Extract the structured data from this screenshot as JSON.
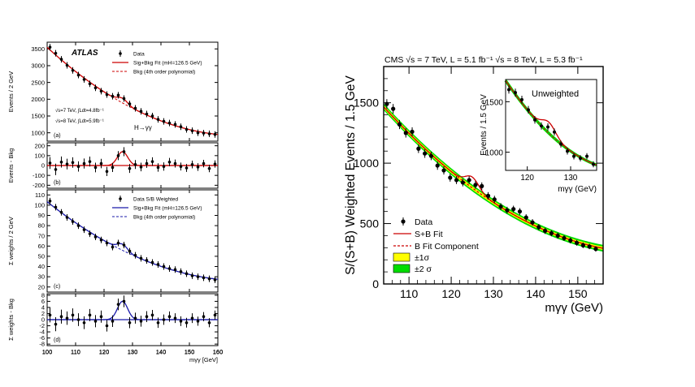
{
  "colors": {
    "data": "#000000",
    "sig_bkg_fit_red": "#cc0000",
    "bkg_dash_red": "#cc0000",
    "weighted_fit_blue": "#1a1aaa",
    "band_1sigma": "#ffff00",
    "band_2sigma": "#00dd00"
  },
  "chart_data": [
    {
      "id": "atlas-a",
      "type": "scatter",
      "ylabel": "Events / 2 GeV",
      "xlim": [
        100,
        160
      ],
      "ylim": [
        750,
        3700
      ],
      "yticks": [
        1000,
        1500,
        2000,
        2500,
        3000,
        3500
      ],
      "brand": "ATLAS",
      "panel_label": "(a)",
      "channel": "H→γγ",
      "lumi_text": [
        "√s=7 TeV, ∫Ldt=4.8fb⁻¹",
        "√s=8 TeV, ∫Ldt=5.9fb⁻¹"
      ],
      "legend": {
        "data": "Data",
        "fit": "Sig+Bkg Fit  (mH=126.5 GeV)",
        "bkg": "Bkg (4th order polynomial)"
      },
      "x": [
        101,
        103,
        105,
        107,
        109,
        111,
        113,
        115,
        117,
        119,
        121,
        123,
        125,
        127,
        129,
        131,
        133,
        135,
        137,
        139,
        141,
        143,
        145,
        147,
        149,
        151,
        153,
        155,
        157,
        159
      ],
      "y": [
        3550,
        3370,
        3190,
        3010,
        2860,
        2720,
        2590,
        2460,
        2340,
        2240,
        2140,
        2090,
        2120,
        2020,
        1860,
        1730,
        1640,
        1560,
        1500,
        1400,
        1340,
        1290,
        1250,
        1180,
        1100,
        1060,
        1000,
        990,
        970,
        950
      ],
      "signal": {
        "mass": 126.5,
        "width": 1.8,
        "amp": 140
      }
    },
    {
      "id": "atlas-b",
      "type": "scatter",
      "ylabel": "Events - Bkg",
      "xlim": [
        100,
        160
      ],
      "ylim": [
        -230,
        230
      ],
      "yticks": [
        -200,
        -100,
        0,
        100,
        200
      ],
      "panel_label": "(b)",
      "x": [
        101,
        103,
        105,
        107,
        109,
        111,
        113,
        115,
        117,
        119,
        121,
        123,
        125,
        127,
        129,
        131,
        133,
        135,
        137,
        139,
        141,
        143,
        145,
        147,
        149,
        151,
        153,
        155,
        157,
        159
      ],
      "y": [
        25,
        -40,
        35,
        15,
        30,
        -10,
        20,
        40,
        -20,
        20,
        -60,
        -20,
        100,
        140,
        -30,
        10,
        -15,
        20,
        40,
        -20,
        -10,
        35,
        20,
        -10,
        -25,
        10,
        -15,
        20,
        -30,
        15
      ],
      "err": [
        60,
        58,
        56,
        54,
        53,
        52,
        51,
        50,
        49,
        48,
        47,
        46,
        46,
        46,
        45,
        45,
        44,
        44,
        43,
        43,
        42,
        42,
        41,
        40,
        40,
        39,
        39,
        38,
        38,
        37
      ]
    },
    {
      "id": "atlas-c",
      "type": "scatter",
      "ylabel": "Σ weights / 2 GeV",
      "xlim": [
        100,
        160
      ],
      "ylim": [
        15,
        115
      ],
      "yticks": [
        20,
        30,
        40,
        50,
        60,
        70,
        80,
        90,
        100,
        110
      ],
      "panel_label": "(c)",
      "legend": {
        "data": "Data S/B Weighted",
        "fit": "Sig+Bkg Fit  (mH=126.5 GeV)",
        "bkg": "Bkg (4th order polynomial)"
      },
      "x": [
        101,
        103,
        105,
        107,
        109,
        111,
        113,
        115,
        117,
        119,
        121,
        123,
        125,
        127,
        129,
        131,
        133,
        135,
        137,
        139,
        141,
        143,
        145,
        147,
        149,
        151,
        153,
        155,
        157,
        159
      ],
      "y": [
        104,
        98,
        93,
        88,
        84,
        80,
        76,
        72,
        69,
        66,
        63,
        59,
        63,
        61,
        55,
        51,
        48,
        46,
        44,
        42,
        40,
        38,
        37,
        35,
        33,
        31,
        30,
        29,
        28,
        27
      ],
      "signal": {
        "mass": 126.5,
        "width": 1.8,
        "amp": 6
      }
    },
    {
      "id": "atlas-d",
      "type": "scatter",
      "ylabel": "Σ weights - Bkg",
      "xlabel": "mγγ [GeV]",
      "xlim": [
        100,
        160
      ],
      "ylim": [
        -8.5,
        8.5
      ],
      "yticks": [
        -8,
        -6,
        -4,
        -2,
        0,
        2,
        4,
        6,
        8
      ],
      "xticks": [
        100,
        110,
        120,
        130,
        140,
        150,
        160
      ],
      "panel_label": "(d)",
      "x": [
        101,
        103,
        105,
        107,
        109,
        111,
        113,
        115,
        117,
        119,
        121,
        123,
        125,
        127,
        129,
        131,
        133,
        135,
        137,
        139,
        141,
        143,
        145,
        147,
        149,
        151,
        153,
        155,
        157,
        159
      ],
      "y": [
        1.5,
        -1.5,
        1,
        0.5,
        1.5,
        0,
        -1,
        1.5,
        -0.5,
        1,
        -2,
        -0.5,
        5,
        6,
        -1,
        0.5,
        -0.5,
        1,
        1.5,
        -1,
        0,
        1,
        0.5,
        -0.5,
        -1,
        0.5,
        -0.5,
        1,
        -1,
        1.5
      ],
      "err": [
        2.4,
        2.3,
        2.3,
        2.2,
        2.2,
        2.1,
        2.1,
        2.0,
        2.0,
        2.0,
        1.9,
        1.9,
        1.9,
        1.9,
        1.8,
        1.8,
        1.8,
        1.8,
        1.7,
        1.7,
        1.7,
        1.7,
        1.6,
        1.6,
        1.6,
        1.6,
        1.5,
        1.5,
        1.5,
        1.5
      ],
      "signal": {
        "mass": 126.5,
        "width": 1.8,
        "amp": 6
      }
    },
    {
      "id": "cms-main",
      "type": "scatter",
      "title": "CMS  √s = 7 TeV, L = 5.1 fb⁻¹ √s = 8 TeV, L = 5.3 fb⁻¹",
      "ylabel": "S/(S+B) Weighted Events / 1.5 GeV",
      "xlabel": "mγγ (GeV)",
      "xlim": [
        104,
        156
      ],
      "ylim": [
        0,
        1800
      ],
      "xticks": [
        110,
        120,
        130,
        140,
        150
      ],
      "yticks": [
        0,
        500,
        1000,
        1500
      ],
      "legend": {
        "data": "Data",
        "fit": "S+B Fit",
        "bkg": "B Fit Component",
        "band1": "±1σ",
        "band2": "±2 σ"
      },
      "x": [
        104.75,
        106.25,
        107.75,
        109.25,
        110.75,
        112.25,
        113.75,
        115.25,
        116.75,
        118.25,
        119.75,
        121.25,
        122.75,
        124.25,
        125.75,
        127.25,
        128.75,
        130.25,
        131.75,
        133.25,
        134.75,
        136.25,
        137.75,
        139.25,
        140.75,
        142.25,
        143.75,
        145.25,
        146.75,
        148.25,
        149.75,
        151.25,
        152.75,
        154.25
      ],
      "y": [
        1490,
        1450,
        1320,
        1250,
        1260,
        1120,
        1080,
        1060,
        980,
        940,
        880,
        860,
        840,
        860,
        820,
        810,
        730,
        700,
        640,
        610,
        620,
        600,
        550,
        510,
        470,
        440,
        420,
        400,
        380,
        360,
        340,
        320,
        310,
        290
      ],
      "err": [
        40,
        40,
        38,
        38,
        37,
        36,
        36,
        35,
        35,
        34,
        33,
        33,
        32,
        32,
        32,
        31,
        30,
        30,
        29,
        29,
        28,
        28,
        27,
        27,
        26,
        26,
        25,
        25,
        24,
        24,
        23,
        23,
        22,
        22
      ],
      "signal": {
        "mass": 125.0,
        "width": 1.6,
        "amp": 90
      }
    },
    {
      "id": "cms-inset",
      "type": "scatter",
      "title": "Unweighted",
      "ylabel": "Events / 1.5 GeV",
      "xlabel": "mγγ (GeV)",
      "xlim": [
        115,
        136
      ],
      "ylim": [
        820,
        1720
      ],
      "xticks": [
        120,
        130
      ],
      "yticks": [
        1000,
        1500
      ],
      "x": [
        115.75,
        117.25,
        118.75,
        120.25,
        121.75,
        123.25,
        124.75,
        126.25,
        127.75,
        129.25,
        130.75,
        132.25,
        133.75,
        135.25
      ],
      "y": [
        1620,
        1590,
        1520,
        1420,
        1320,
        1260,
        1250,
        1200,
        1080,
        1010,
        960,
        940,
        960,
        880
      ],
      "err": [
        40,
        40,
        39,
        38,
        37,
        36,
        36,
        35,
        34,
        33,
        32,
        31,
        31,
        30
      ],
      "signal": {
        "mass": 125.0,
        "width": 1.6,
        "amp": 110
      }
    }
  ]
}
